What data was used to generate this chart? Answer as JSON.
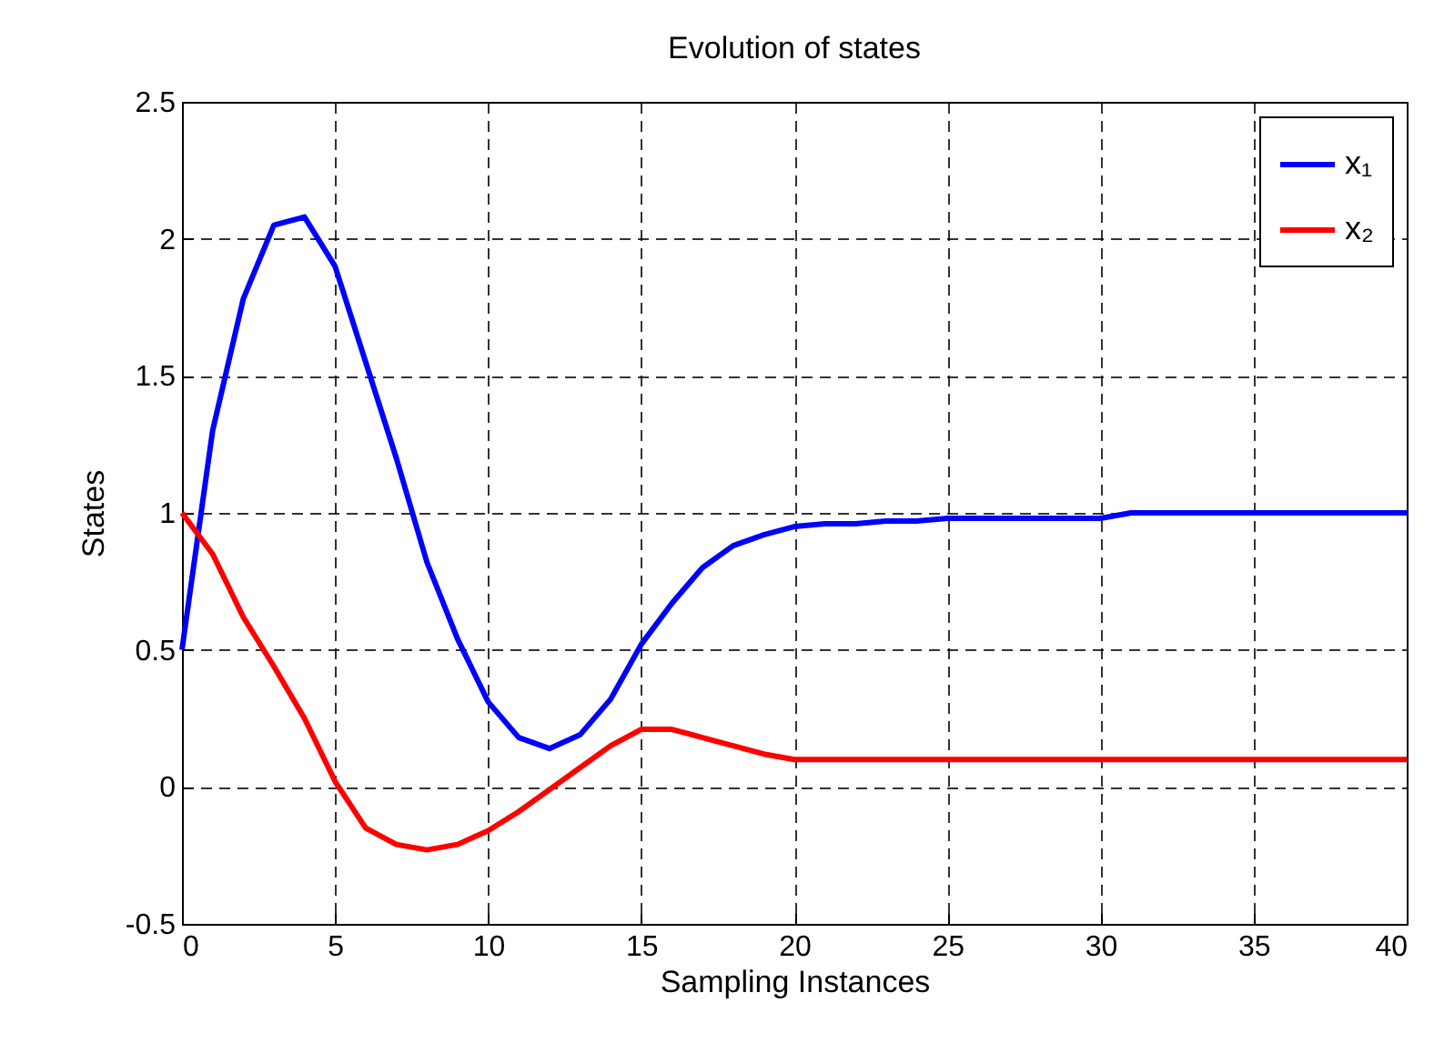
{
  "chart_data": {
    "type": "line",
    "title": "Evolution of states",
    "xlabel": "Sampling Instances",
    "ylabel": "States",
    "x": [
      0,
      1,
      2,
      3,
      4,
      5,
      6,
      7,
      8,
      9,
      10,
      11,
      12,
      13,
      14,
      15,
      16,
      17,
      18,
      19,
      20,
      21,
      22,
      23,
      24,
      25,
      26,
      27,
      28,
      29,
      30,
      31,
      32,
      33,
      34,
      35,
      36,
      37,
      38,
      39,
      40
    ],
    "series": [
      {
        "name": "x₁",
        "color": "#0000ff",
        "values": [
          0.5,
          1.3,
          1.78,
          2.05,
          2.08,
          1.9,
          1.55,
          1.2,
          0.82,
          0.54,
          0.31,
          0.18,
          0.14,
          0.19,
          0.32,
          0.52,
          0.67,
          0.8,
          0.88,
          0.92,
          0.95,
          0.96,
          0.96,
          0.97,
          0.97,
          0.98,
          0.98,
          0.98,
          0.98,
          0.98,
          0.98,
          1.0,
          1.0,
          1.0,
          1.0,
          1.0,
          1.0,
          1.0,
          1.0,
          1.0,
          1.0
        ]
      },
      {
        "name": "x₂",
        "color": "#ff0000",
        "values": [
          1.0,
          0.85,
          0.62,
          0.44,
          0.25,
          0.02,
          -0.15,
          -0.21,
          -0.23,
          -0.21,
          -0.16,
          -0.09,
          -0.01,
          0.07,
          0.15,
          0.21,
          0.21,
          0.18,
          0.15,
          0.12,
          0.1,
          0.1,
          0.1,
          0.1,
          0.1,
          0.1,
          0.1,
          0.1,
          0.1,
          0.1,
          0.1,
          0.1,
          0.1,
          0.1,
          0.1,
          0.1,
          0.1,
          0.1,
          0.1,
          0.1,
          0.1
        ]
      }
    ],
    "xlim": [
      0,
      40
    ],
    "xticks": [
      0,
      5,
      10,
      15,
      20,
      25,
      30,
      35,
      40
    ],
    "ylim": [
      -0.5,
      2.5
    ],
    "yticks": [
      -0.5,
      0,
      0.5,
      1,
      1.5,
      2,
      2.5
    ],
    "grid": true,
    "legend": "top right",
    "line_style": "solid",
    "marker": "none"
  }
}
